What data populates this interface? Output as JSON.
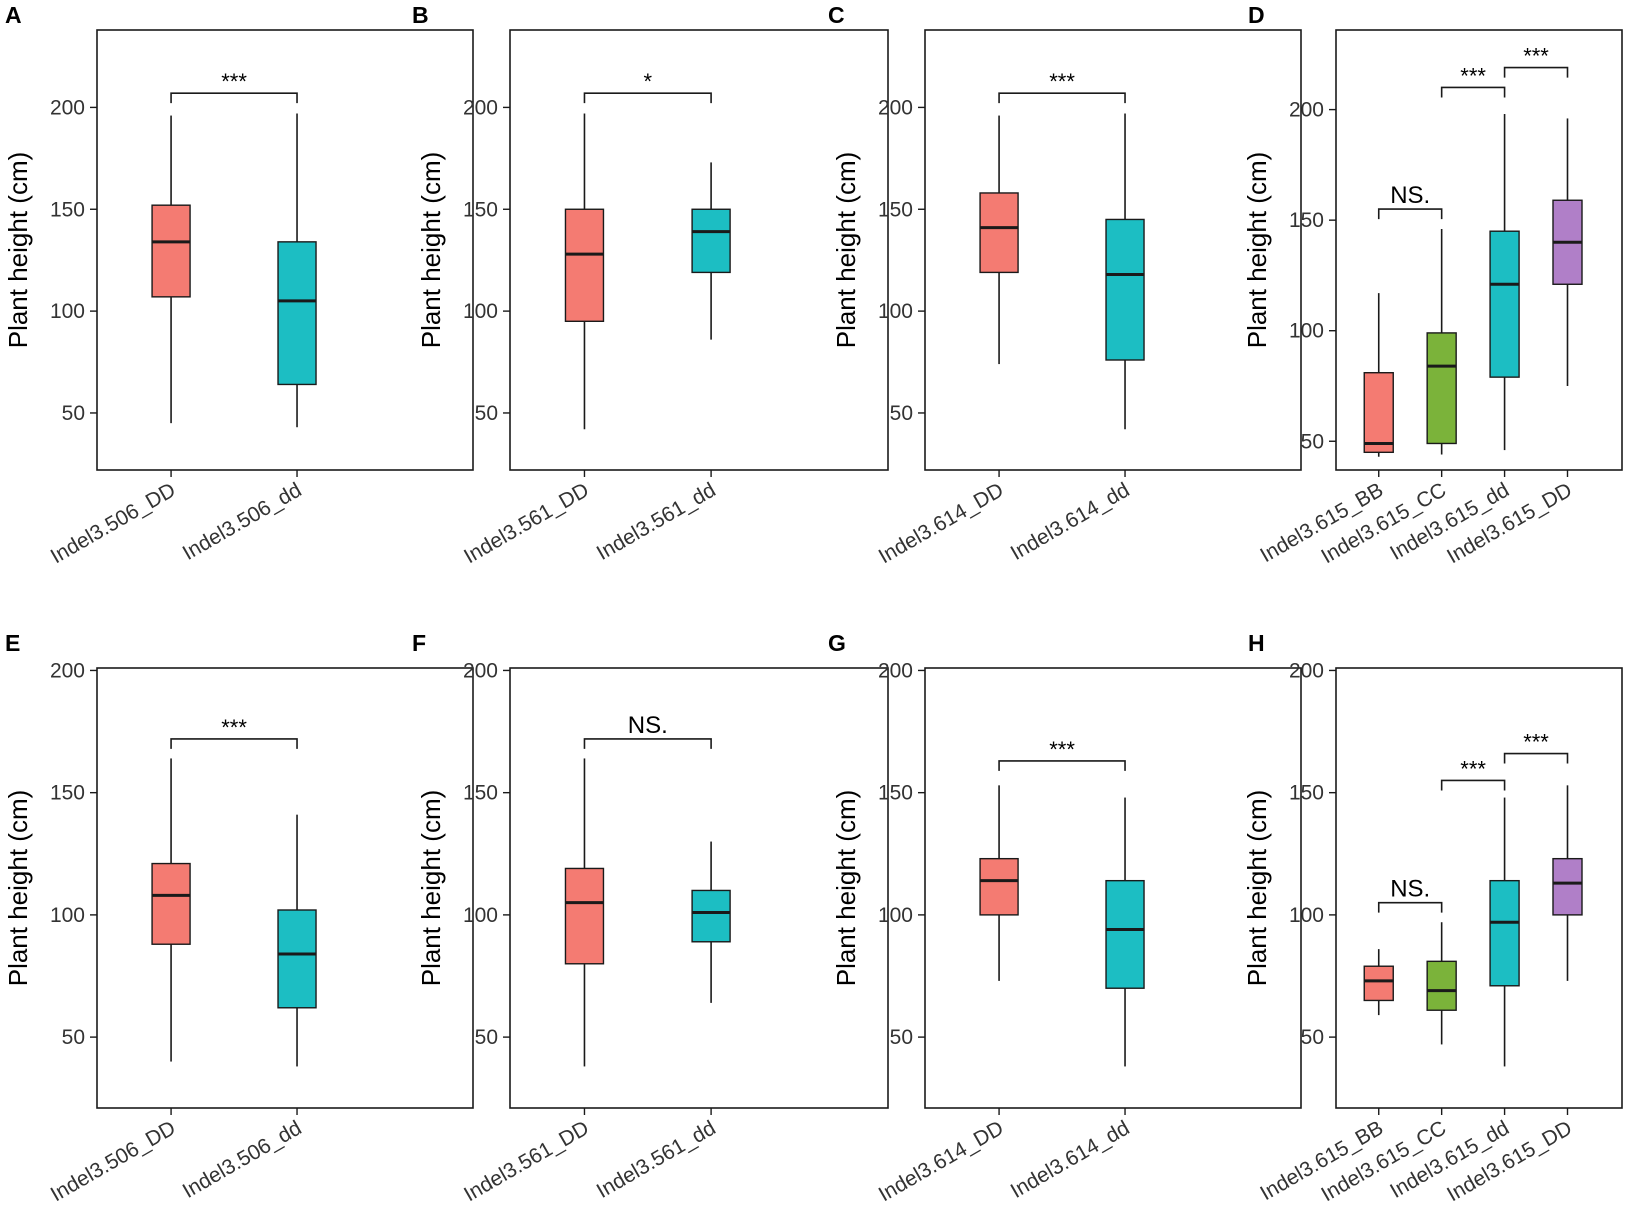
{
  "figure": {
    "colors": {
      "red": "#F47B72",
      "teal": "#1CBEC3",
      "green": "#7BB33A",
      "purple": "#B07FC8"
    },
    "ylabel": "Plant height (cm)"
  },
  "chart_data": [
    {
      "panel": "A",
      "type": "box",
      "ylim": [
        22,
        238
      ],
      "yticks": [
        "50",
        "100",
        "150",
        "200"
      ],
      "ytick_values": [
        50,
        100,
        150,
        200
      ],
      "ylabel": "Plant height (cm)",
      "categories": [
        "Indel3.506_DD",
        "Indel3.506_dd"
      ],
      "boxes": [
        {
          "min": 45,
          "q1": 107,
          "median": 134,
          "q3": 152,
          "max": 196,
          "color": "red"
        },
        {
          "min": 43,
          "q1": 64,
          "median": 105,
          "q3": 134,
          "max": 197,
          "color": "teal"
        }
      ],
      "significance": [
        {
          "from": 0,
          "to": 1,
          "y": 207,
          "label": "***"
        }
      ]
    },
    {
      "panel": "B",
      "type": "box",
      "ylim": [
        22,
        238
      ],
      "yticks": [
        "50",
        "100",
        "150",
        "200"
      ],
      "ytick_values": [
        50,
        100,
        150,
        200
      ],
      "ylabel": "Plant height (cm)",
      "categories": [
        "Indel3.561_DD",
        "Indel3.561_dd"
      ],
      "boxes": [
        {
          "min": 42,
          "q1": 95,
          "median": 128,
          "q3": 150,
          "max": 197,
          "color": "red"
        },
        {
          "min": 86,
          "q1": 119,
          "median": 139,
          "q3": 150,
          "max": 173,
          "color": "teal"
        }
      ],
      "significance": [
        {
          "from": 0,
          "to": 1,
          "y": 207,
          "label": "*"
        }
      ]
    },
    {
      "panel": "C",
      "type": "box",
      "ylim": [
        22,
        238
      ],
      "yticks": [
        "50",
        "100",
        "150",
        "200"
      ],
      "ytick_values": [
        50,
        100,
        150,
        200
      ],
      "ylabel": "Plant height (cm)",
      "categories": [
        "Indel3.614_DD",
        "Indel3.614_dd"
      ],
      "boxes": [
        {
          "min": 74,
          "q1": 119,
          "median": 141,
          "q3": 158,
          "max": 196,
          "color": "red"
        },
        {
          "min": 42,
          "q1": 76,
          "median": 118,
          "q3": 145,
          "max": 197,
          "color": "teal"
        }
      ],
      "significance": [
        {
          "from": 0,
          "to": 1,
          "y": 207,
          "label": "***"
        }
      ]
    },
    {
      "panel": "D",
      "type": "box",
      "ylim": [
        37,
        236
      ],
      "yticks": [
        "50",
        "100",
        "150",
        "200"
      ],
      "ytick_values": [
        50,
        100,
        150,
        200
      ],
      "ylabel": "Plant height (cm)",
      "categories": [
        "Indel3.615_BB",
        "Indel3.615_CC",
        "Indel3.615_dd",
        "Indel3.615_DD"
      ],
      "boxes": [
        {
          "min": 43,
          "q1": 45,
          "median": 49,
          "q3": 81,
          "max": 117,
          "color": "red"
        },
        {
          "min": 44,
          "q1": 49,
          "median": 84,
          "q3": 99,
          "max": 146,
          "color": "green"
        },
        {
          "min": 46,
          "q1": 79,
          "median": 121,
          "q3": 145,
          "max": 198,
          "color": "teal"
        },
        {
          "min": 75,
          "q1": 121,
          "median": 140,
          "q3": 159,
          "max": 196,
          "color": "purple"
        }
      ],
      "significance": [
        {
          "from": 0,
          "to": 1,
          "y": 155,
          "label": "NS."
        },
        {
          "from": 1,
          "to": 2,
          "y": 210,
          "label": "***"
        },
        {
          "from": 2,
          "to": 3,
          "y": 219,
          "label": "***"
        }
      ]
    },
    {
      "panel": "E",
      "type": "box",
      "ylim": [
        21,
        201
      ],
      "yticks": [
        "50",
        "100",
        "150",
        "200"
      ],
      "ytick_values": [
        50,
        100,
        150,
        200
      ],
      "ylabel": "Plant height (cm)",
      "categories": [
        "Indel3.506_DD",
        "Indel3.506_dd"
      ],
      "boxes": [
        {
          "min": 40,
          "q1": 88,
          "median": 108,
          "q3": 121,
          "max": 164,
          "color": "red"
        },
        {
          "min": 38,
          "q1": 62,
          "median": 84,
          "q3": 102,
          "max": 141,
          "color": "teal"
        }
      ],
      "significance": [
        {
          "from": 0,
          "to": 1,
          "y": 172,
          "label": "***"
        }
      ]
    },
    {
      "panel": "F",
      "type": "box",
      "ylim": [
        21,
        201
      ],
      "yticks": [
        "50",
        "100",
        "150",
        "200"
      ],
      "ytick_values": [
        50,
        100,
        150,
        200
      ],
      "ylabel": "Plant height (cm)",
      "categories": [
        "Indel3.561_DD",
        "Indel3.561_dd"
      ],
      "boxes": [
        {
          "min": 38,
          "q1": 80,
          "median": 105,
          "q3": 119,
          "max": 164,
          "color": "red"
        },
        {
          "min": 64,
          "q1": 89,
          "median": 101,
          "q3": 110,
          "max": 130,
          "color": "teal"
        }
      ],
      "significance": [
        {
          "from": 0,
          "to": 1,
          "y": 172,
          "label": "NS."
        }
      ]
    },
    {
      "panel": "G",
      "type": "box",
      "ylim": [
        21,
        201
      ],
      "yticks": [
        "50",
        "100",
        "150",
        "200"
      ],
      "ytick_values": [
        50,
        100,
        150,
        200
      ],
      "ylabel": "Plant height (cm)",
      "categories": [
        "Indel3.614_DD",
        "Indel3.614_dd"
      ],
      "boxes": [
        {
          "min": 73,
          "q1": 100,
          "median": 114,
          "q3": 123,
          "max": 153,
          "color": "red"
        },
        {
          "min": 38,
          "q1": 70,
          "median": 94,
          "q3": 114,
          "max": 148,
          "color": "teal"
        }
      ],
      "significance": [
        {
          "from": 0,
          "to": 1,
          "y": 163,
          "label": "***"
        }
      ]
    },
    {
      "panel": "H",
      "type": "box",
      "ylim": [
        21,
        201
      ],
      "yticks": [
        "50",
        "100",
        "150",
        "200"
      ],
      "ytick_values": [
        50,
        100,
        150,
        200
      ],
      "ylabel": "Plant height (cm)",
      "categories": [
        "Indel3.615_BB",
        "Indel3.615_CC",
        "Indel3.615_dd",
        "Indel3.615_DD"
      ],
      "boxes": [
        {
          "min": 59,
          "q1": 65,
          "median": 73,
          "q3": 79,
          "max": 86,
          "color": "red"
        },
        {
          "min": 47,
          "q1": 61,
          "median": 69,
          "q3": 81,
          "max": 97,
          "color": "green"
        },
        {
          "min": 38,
          "q1": 71,
          "median": 97,
          "q3": 114,
          "max": 148,
          "color": "teal"
        },
        {
          "min": 73,
          "q1": 100,
          "median": 113,
          "q3": 123,
          "max": 153,
          "color": "purple"
        }
      ],
      "significance": [
        {
          "from": 0,
          "to": 1,
          "y": 105,
          "label": "NS."
        },
        {
          "from": 1,
          "to": 2,
          "y": 155,
          "label": "***"
        },
        {
          "from": 2,
          "to": 3,
          "y": 166,
          "label": "***"
        }
      ]
    }
  ]
}
